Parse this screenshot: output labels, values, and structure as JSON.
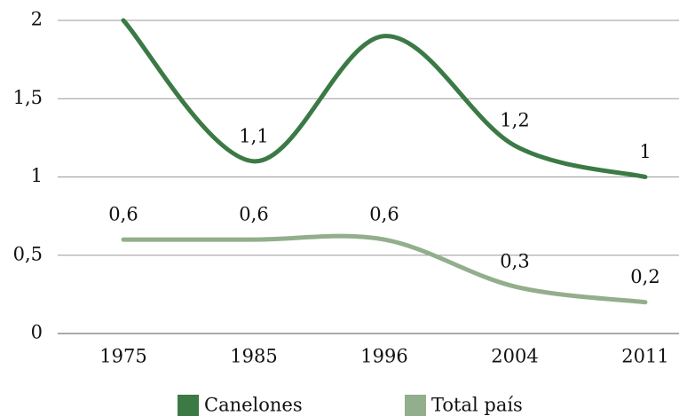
{
  "chart_data": {
    "type": "line",
    "categories": [
      "1975",
      "1985",
      "1996",
      "2004",
      "2011"
    ],
    "series": [
      {
        "name": "Canelones",
        "color": "#3b7a45",
        "values": [
          2,
          1.1,
          1.9,
          1.2,
          1
        ],
        "value_labels": [
          null,
          "1,1",
          null,
          "1,2",
          "1"
        ]
      },
      {
        "name": "Total país",
        "color": "#93ae8c",
        "values": [
          0.6,
          0.6,
          0.6,
          0.3,
          0.2
        ],
        "value_labels": [
          "0,6",
          "0,6",
          "0,6",
          "0,3",
          "0,2"
        ]
      }
    ],
    "ylim": [
      0,
      2
    ],
    "yticks": [
      0,
      {
        "value": 0.5,
        "label": "0,5"
      },
      1,
      {
        "value": 1.5,
        "label": "1,5"
      },
      2
    ],
    "grid": true,
    "legend": "bottom"
  }
}
